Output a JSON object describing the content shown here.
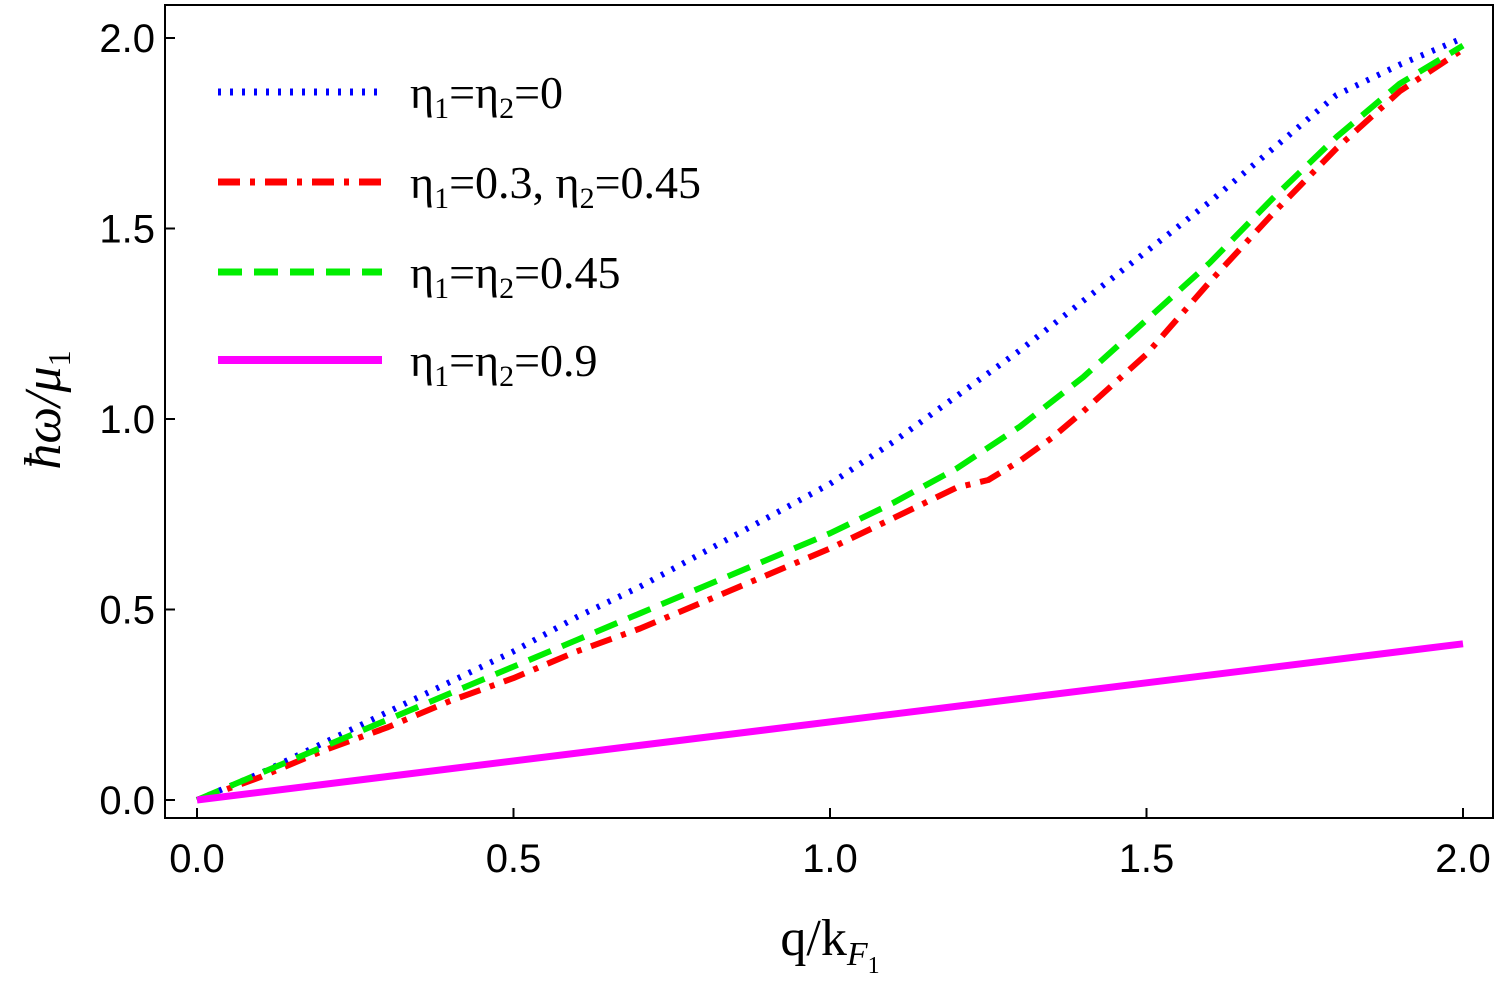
{
  "chart_data": {
    "type": "line",
    "xlabel": "q/k",
    "xlabel_sub": "F",
    "xlabel_subsub": "1",
    "ylabel": "ħω/μ",
    "ylabel_sub": "1",
    "xlim": [
      0.0,
      2.0
    ],
    "ylim": [
      0.0,
      2.0
    ],
    "x_ticks": [
      "0.0",
      "0.5",
      "1.0",
      "1.5",
      "2.0"
    ],
    "y_ticks": [
      "0.0",
      "0.5",
      "1.0",
      "1.5",
      "2.0"
    ],
    "grid": false,
    "legend_position": "top-left",
    "series": [
      {
        "name": "η1=η2=0",
        "label_parts": [
          "η",
          "1",
          "=η",
          "2",
          "=0"
        ],
        "color": "#0000ff",
        "style": "dotted",
        "x": [
          0.0,
          0.1,
          0.2,
          0.3,
          0.4,
          0.5,
          0.6,
          0.7,
          0.8,
          0.9,
          1.0,
          1.1,
          1.2,
          1.3,
          1.4,
          1.5,
          1.6,
          1.7,
          1.8,
          1.9,
          2.0
        ],
        "y": [
          0.0,
          0.07,
          0.15,
          0.23,
          0.31,
          0.39,
          0.48,
          0.56,
          0.65,
          0.74,
          0.83,
          0.94,
          1.06,
          1.18,
          1.31,
          1.44,
          1.57,
          1.71,
          1.85,
          1.93,
          2.0
        ]
      },
      {
        "name": "η1=0.3, η2=0.45",
        "label_parts": [
          "η",
          "1",
          "=0.3, η",
          "2",
          "=0.45"
        ],
        "color": "#ff0000",
        "style": "dashdot",
        "x": [
          0.0,
          0.1,
          0.2,
          0.3,
          0.4,
          0.5,
          0.6,
          0.7,
          0.8,
          0.9,
          1.0,
          1.1,
          1.2,
          1.25,
          1.3,
          1.35,
          1.4,
          1.5,
          1.6,
          1.7,
          1.8,
          1.9,
          2.0
        ],
        "y": [
          0.0,
          0.06,
          0.13,
          0.19,
          0.26,
          0.32,
          0.39,
          0.45,
          0.52,
          0.59,
          0.66,
          0.74,
          0.82,
          0.84,
          0.89,
          0.95,
          1.02,
          1.17,
          1.36,
          1.54,
          1.71,
          1.86,
          1.97
        ]
      },
      {
        "name": "η1=η2=0.45",
        "label_parts": [
          "η",
          "1",
          "=η",
          "2",
          "=0.45"
        ],
        "color": "#00ee00",
        "style": "dashed",
        "x": [
          0.0,
          0.1,
          0.2,
          0.3,
          0.4,
          0.5,
          0.6,
          0.7,
          0.8,
          0.9,
          1.0,
          1.1,
          1.2,
          1.3,
          1.4,
          1.5,
          1.6,
          1.7,
          1.8,
          1.9,
          2.0
        ],
        "y": [
          0.0,
          0.07,
          0.14,
          0.21,
          0.28,
          0.35,
          0.42,
          0.49,
          0.56,
          0.63,
          0.7,
          0.78,
          0.87,
          0.98,
          1.11,
          1.26,
          1.41,
          1.58,
          1.74,
          1.88,
          1.98
        ]
      },
      {
        "name": "η1=η2=0.9",
        "label_parts": [
          "η",
          "1",
          "=η",
          "2",
          "=0.9"
        ],
        "color": "#ff00ff",
        "style": "solid",
        "x": [
          0.0,
          2.0
        ],
        "y": [
          0.0,
          0.41
        ]
      }
    ]
  }
}
